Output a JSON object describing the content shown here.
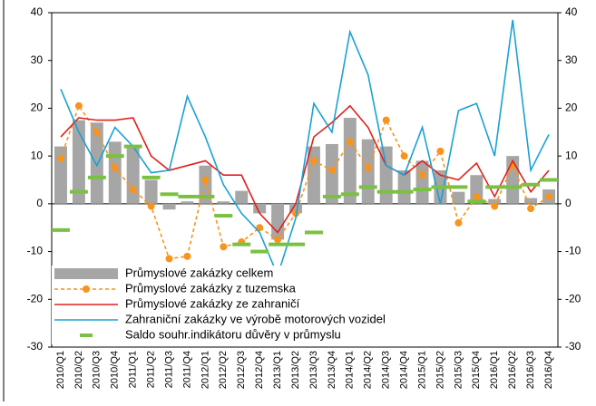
{
  "chart_data": {
    "type": "combo",
    "categories": [
      "2010/Q1",
      "2010/Q2",
      "2010/Q3",
      "2010/Q4",
      "2011/Q1",
      "2011/Q2",
      "2011/Q3",
      "2011/Q4",
      "2012/Q1",
      "2012/Q2",
      "2012/Q3",
      "2012/Q4",
      "2013/Q1",
      "2013/Q2",
      "2013/Q3",
      "2013/Q4",
      "2014/Q1",
      "2014/Q2",
      "2014/Q3",
      "2014/Q4",
      "2015/Q1",
      "2015/Q2",
      "2015/Q3",
      "2015/Q4",
      "2016/Q1",
      "2016/Q2",
      "2016/Q3",
      "2016/Q4"
    ],
    "series": [
      {
        "name": "Průmyslové zakázky celkem",
        "kind": "bar",
        "color": "#a6a6a6",
        "values": [
          12,
          17.5,
          17,
          13,
          12,
          5,
          -1.2,
          0.5,
          8,
          0.5,
          2.7,
          -2,
          -7.5,
          -2,
          12,
          12.5,
          18,
          13.5,
          12,
          7,
          9,
          7,
          2.5,
          6,
          1,
          10,
          1.2,
          3
        ]
      },
      {
        "name": "Průmyslové zakázky z tuzemska",
        "kind": "dashed-marker",
        "color": "#f7941d",
        "values": [
          9.5,
          20.5,
          15,
          7.5,
          3,
          -0.5,
          -11.5,
          -11,
          5,
          -9,
          -8,
          -5,
          -7.5,
          -2,
          9,
          7,
          13,
          7.5,
          17.5,
          10,
          6,
          11,
          -4,
          1.5,
          -0.5,
          8,
          -1,
          1.5
        ]
      },
      {
        "name": "Průmyslové zakázky ze zahraničí",
        "kind": "line",
        "color": "#e2201c",
        "values": [
          14,
          18,
          17.5,
          17.5,
          18,
          10,
          7,
          8,
          9,
          6,
          6,
          -2,
          -6,
          0,
          14,
          17,
          20.5,
          16,
          8,
          6,
          9,
          6,
          5,
          8.5,
          1.5,
          9,
          2.5,
          7
        ]
      },
      {
        "name": "Zahraniční zakázky ve výrobě motorových vozidel",
        "kind": "line",
        "color": "#1ba1d6",
        "values": [
          24,
          15,
          8,
          16,
          12,
          6.5,
          7,
          22.5,
          14,
          4,
          -2,
          -6,
          -15,
          -3,
          21,
          15,
          36,
          27,
          8,
          6,
          16,
          0,
          19.5,
          21,
          10,
          38.5,
          7,
          14.5
        ]
      },
      {
        "name": "Saldo souhr.indikátoru důvěry v průmyslu",
        "kind": "dash",
        "color": "#7ac143",
        "values": [
          -5.5,
          2.5,
          5.5,
          10,
          12,
          5.5,
          2,
          1.5,
          1.5,
          -2.5,
          -8.5,
          -10,
          -8.5,
          -8.5,
          -6,
          1.5,
          2,
          3.5,
          2.5,
          2.5,
          3,
          3.5,
          3.5,
          0.5,
          3.5,
          3.5,
          4,
          5
        ]
      }
    ],
    "ylim": [
      -30,
      40
    ],
    "yticks": [
      -30,
      -20,
      -10,
      0,
      10,
      20,
      30,
      40
    ],
    "y2lim": [
      -30,
      40
    ],
    "y2ticks": [
      -30,
      -20,
      -10,
      0,
      10,
      20,
      30,
      40
    ]
  }
}
